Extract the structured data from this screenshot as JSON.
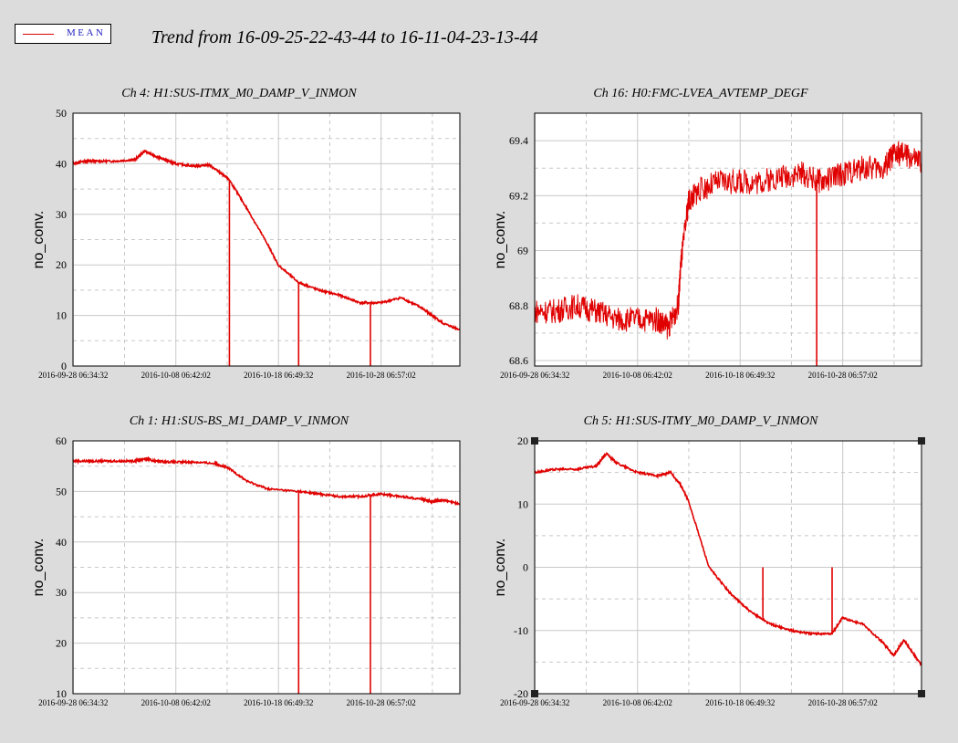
{
  "legend": {
    "label": "MEAN",
    "line_color": "#e00000"
  },
  "title": "Trend from 16-09-25-22-43-44 to 16-11-04-23-13-44",
  "colors": {
    "background": "#dcdcdc",
    "plot_bg": "#ffffff",
    "series": "#e00000",
    "grid": "#c8c8c8"
  },
  "chart_data": [
    {
      "type": "line",
      "title": "Ch 4: H1:SUS-ITMX_M0_DAMP_V_INMON",
      "ylabel": "no_conv.",
      "xlim": [
        "2016-09-28 06:00",
        "2016-11-04 23:13"
      ],
      "x_ticks": [
        "2016-09-28 06:34:32",
        "2016-10-08 06:42:02",
        "2016-10-18 06:49:32",
        "2016-10-28 06:57:02"
      ],
      "ylim": [
        0,
        50
      ],
      "y_ticks": [
        0,
        10,
        20,
        30,
        40,
        50
      ],
      "series": [
        {
          "x": [
            "2016-09-28 06:00",
            "2016-09-29 06:00",
            "2016-09-30 06:00",
            "2016-10-02 06:00",
            "2016-10-04 06:00",
            "2016-10-05 06:00",
            "2016-10-06 06:00",
            "2016-10-07 06:00",
            "2016-10-08 06:00",
            "2016-10-10 06:00",
            "2016-10-11 12:00",
            "2016-10-12 18:00",
            "2016-10-13 12:00",
            "2016-10-15 06:00",
            "2016-10-17 06:00",
            "2016-10-18 06:00",
            "2016-10-20 06:00",
            "2016-10-22 06:00",
            "2016-10-24 06:00",
            "2016-10-26 06:00",
            "2016-10-28 06:00",
            "2016-10-30 06:00",
            "2016-11-01 06:00",
            "2016-11-02 06:00",
            "2016-11-03 06:00",
            "2016-11-04 23:00"
          ],
          "y": [
            40,
            40.5,
            40.5,
            40.5,
            40.8,
            42.5,
            41.5,
            40.8,
            40,
            39.5,
            39.8,
            38,
            36.8,
            31,
            24,
            20,
            16.5,
            15,
            14,
            12.5,
            12.5,
            13.5,
            11.5,
            10,
            8.5,
            7.2
          ]
        }
      ],
      "spikes": [
        {
          "x": "2016-10-13 12:00",
          "y": 0
        },
        {
          "x": "2016-10-20 06:00",
          "y": 0
        },
        {
          "x": "2016-10-27 06:00",
          "y": 0
        }
      ]
    },
    {
      "type": "line",
      "title": "Ch 16: H0:FMC-LVEA_AVTEMP_DEGF",
      "ylabel": "no_conv.",
      "xlim": [
        "2016-09-28 06:00",
        "2016-11-04 23:13"
      ],
      "x_ticks": [
        "2016-09-28 06:34:32",
        "2016-10-08 06:42:02",
        "2016-10-18 06:49:32",
        "2016-10-28 06:57:02"
      ],
      "ylim": [
        68.58,
        69.5
      ],
      "y_ticks": [
        "68.6",
        "68.8",
        "69",
        "69.2",
        "69.4"
      ],
      "series": [
        {
          "x": [
            "2016-09-28 06:00",
            "2016-09-30 06:00",
            "2016-10-02 06:00",
            "2016-10-04 06:00",
            "2016-10-06 06:00",
            "2016-10-08 06:00",
            "2016-10-10 06:00",
            "2016-10-11 06:00",
            "2016-10-12 06:00",
            "2016-10-12 12:00",
            "2016-10-13 06:00",
            "2016-10-14 06:00",
            "2016-10-16 06:00",
            "2016-10-18 06:00",
            "2016-10-20 06:00",
            "2016-10-22 06:00",
            "2016-10-24 06:00",
            "2016-10-26 06:00",
            "2016-10-28 06:00",
            "2016-10-30 06:00",
            "2016-11-01 06:00",
            "2016-11-02 06:00",
            "2016-11-03 06:00",
            "2016-11-04 23:00"
          ],
          "y": [
            68.78,
            68.78,
            68.8,
            68.78,
            68.75,
            68.75,
            68.75,
            68.72,
            68.8,
            68.95,
            69.18,
            69.22,
            69.25,
            69.25,
            69.25,
            69.27,
            69.28,
            69.25,
            69.28,
            69.3,
            69.3,
            69.35,
            69.35,
            69.32
          ]
        }
      ],
      "spikes": [
        {
          "x": "2016-10-25 18:00",
          "y": 68.58
        }
      ]
    },
    {
      "type": "line",
      "title": "Ch 1: H1:SUS-BS_M1_DAMP_V_INMON",
      "ylabel": "no_conv.",
      "xlim": [
        "2016-09-28 06:00",
        "2016-11-04 23:13"
      ],
      "x_ticks": [
        "2016-09-28 06:34:32",
        "2016-10-08 06:42:02",
        "2016-10-18 06:49:32",
        "2016-10-28 06:57:02"
      ],
      "ylim": [
        10,
        60
      ],
      "y_ticks": [
        10,
        20,
        30,
        40,
        50,
        60
      ],
      "series": [
        {
          "x": [
            "2016-09-28 06:00",
            "2016-09-30 06:00",
            "2016-10-02 06:00",
            "2016-10-04 06:00",
            "2016-10-05 06:00",
            "2016-10-06 06:00",
            "2016-10-08 06:00",
            "2016-10-10 06:00",
            "2016-10-12 06:00",
            "2016-10-13 12:00",
            "2016-10-15 06:00",
            "2016-10-17 06:00",
            "2016-10-20 06:00",
            "2016-10-22 06:00",
            "2016-10-24 06:00",
            "2016-10-26 06:00",
            "2016-10-28 06:00",
            "2016-10-30 06:00",
            "2016-11-01 06:00",
            "2016-11-02 06:00",
            "2016-11-03 06:00",
            "2016-11-04 23:00"
          ],
          "y": [
            56,
            56,
            56,
            56,
            56.5,
            56,
            55.8,
            55.8,
            55.5,
            54.5,
            52,
            50.5,
            50,
            49.5,
            49,
            49,
            49.5,
            49,
            48.5,
            48,
            48.3,
            47.5
          ]
        }
      ],
      "spikes": [
        {
          "x": "2016-10-20 06:00",
          "y": 10
        },
        {
          "x": "2016-10-27 06:00",
          "y": 10
        }
      ]
    },
    {
      "type": "line",
      "title": "Ch 5: H1:SUS-ITMY_M0_DAMP_V_INMON",
      "ylabel": "no_conv.",
      "xlim": [
        "2016-09-28 06:00",
        "2016-11-04 23:13"
      ],
      "x_ticks": [
        "2016-09-28 06:34:32",
        "2016-10-08 06:42:02",
        "2016-10-18 06:49:32",
        "2016-10-28 06:57:02"
      ],
      "ylim": [
        -20,
        20
      ],
      "y_ticks": [
        -20,
        -10,
        0,
        10,
        20
      ],
      "series": [
        {
          "x": [
            "2016-09-28 06:00",
            "2016-09-30 06:00",
            "2016-10-02 06:00",
            "2016-10-04 06:00",
            "2016-10-05 06:00",
            "2016-10-06 06:00",
            "2016-10-08 06:00",
            "2016-10-10 06:00",
            "2016-10-11 12:00",
            "2016-10-12 12:00",
            "2016-10-13 06:00",
            "2016-10-15 06:00",
            "2016-10-17 06:00",
            "2016-10-19 06:00",
            "2016-10-21 06:00",
            "2016-10-23 06:00",
            "2016-10-25 06:00",
            "2016-10-27 06:00",
            "2016-10-28 06:00",
            "2016-10-30 06:00",
            "2016-11-01 06:00",
            "2016-11-02 06:00",
            "2016-11-03 06:00",
            "2016-11-04 23:00"
          ],
          "y": [
            15,
            15.5,
            15.5,
            16,
            18,
            16.5,
            15,
            14.5,
            15,
            13,
            10.5,
            0,
            -4,
            -7,
            -9,
            -10,
            -10.5,
            -10.5,
            -8,
            -9,
            -12,
            -14,
            -11.5,
            -15.5
          ]
        }
      ],
      "spikes": [
        {
          "x": "2016-10-20 12:00",
          "y": 0
        },
        {
          "x": "2016-10-27 06:00",
          "y": 0
        }
      ]
    }
  ]
}
